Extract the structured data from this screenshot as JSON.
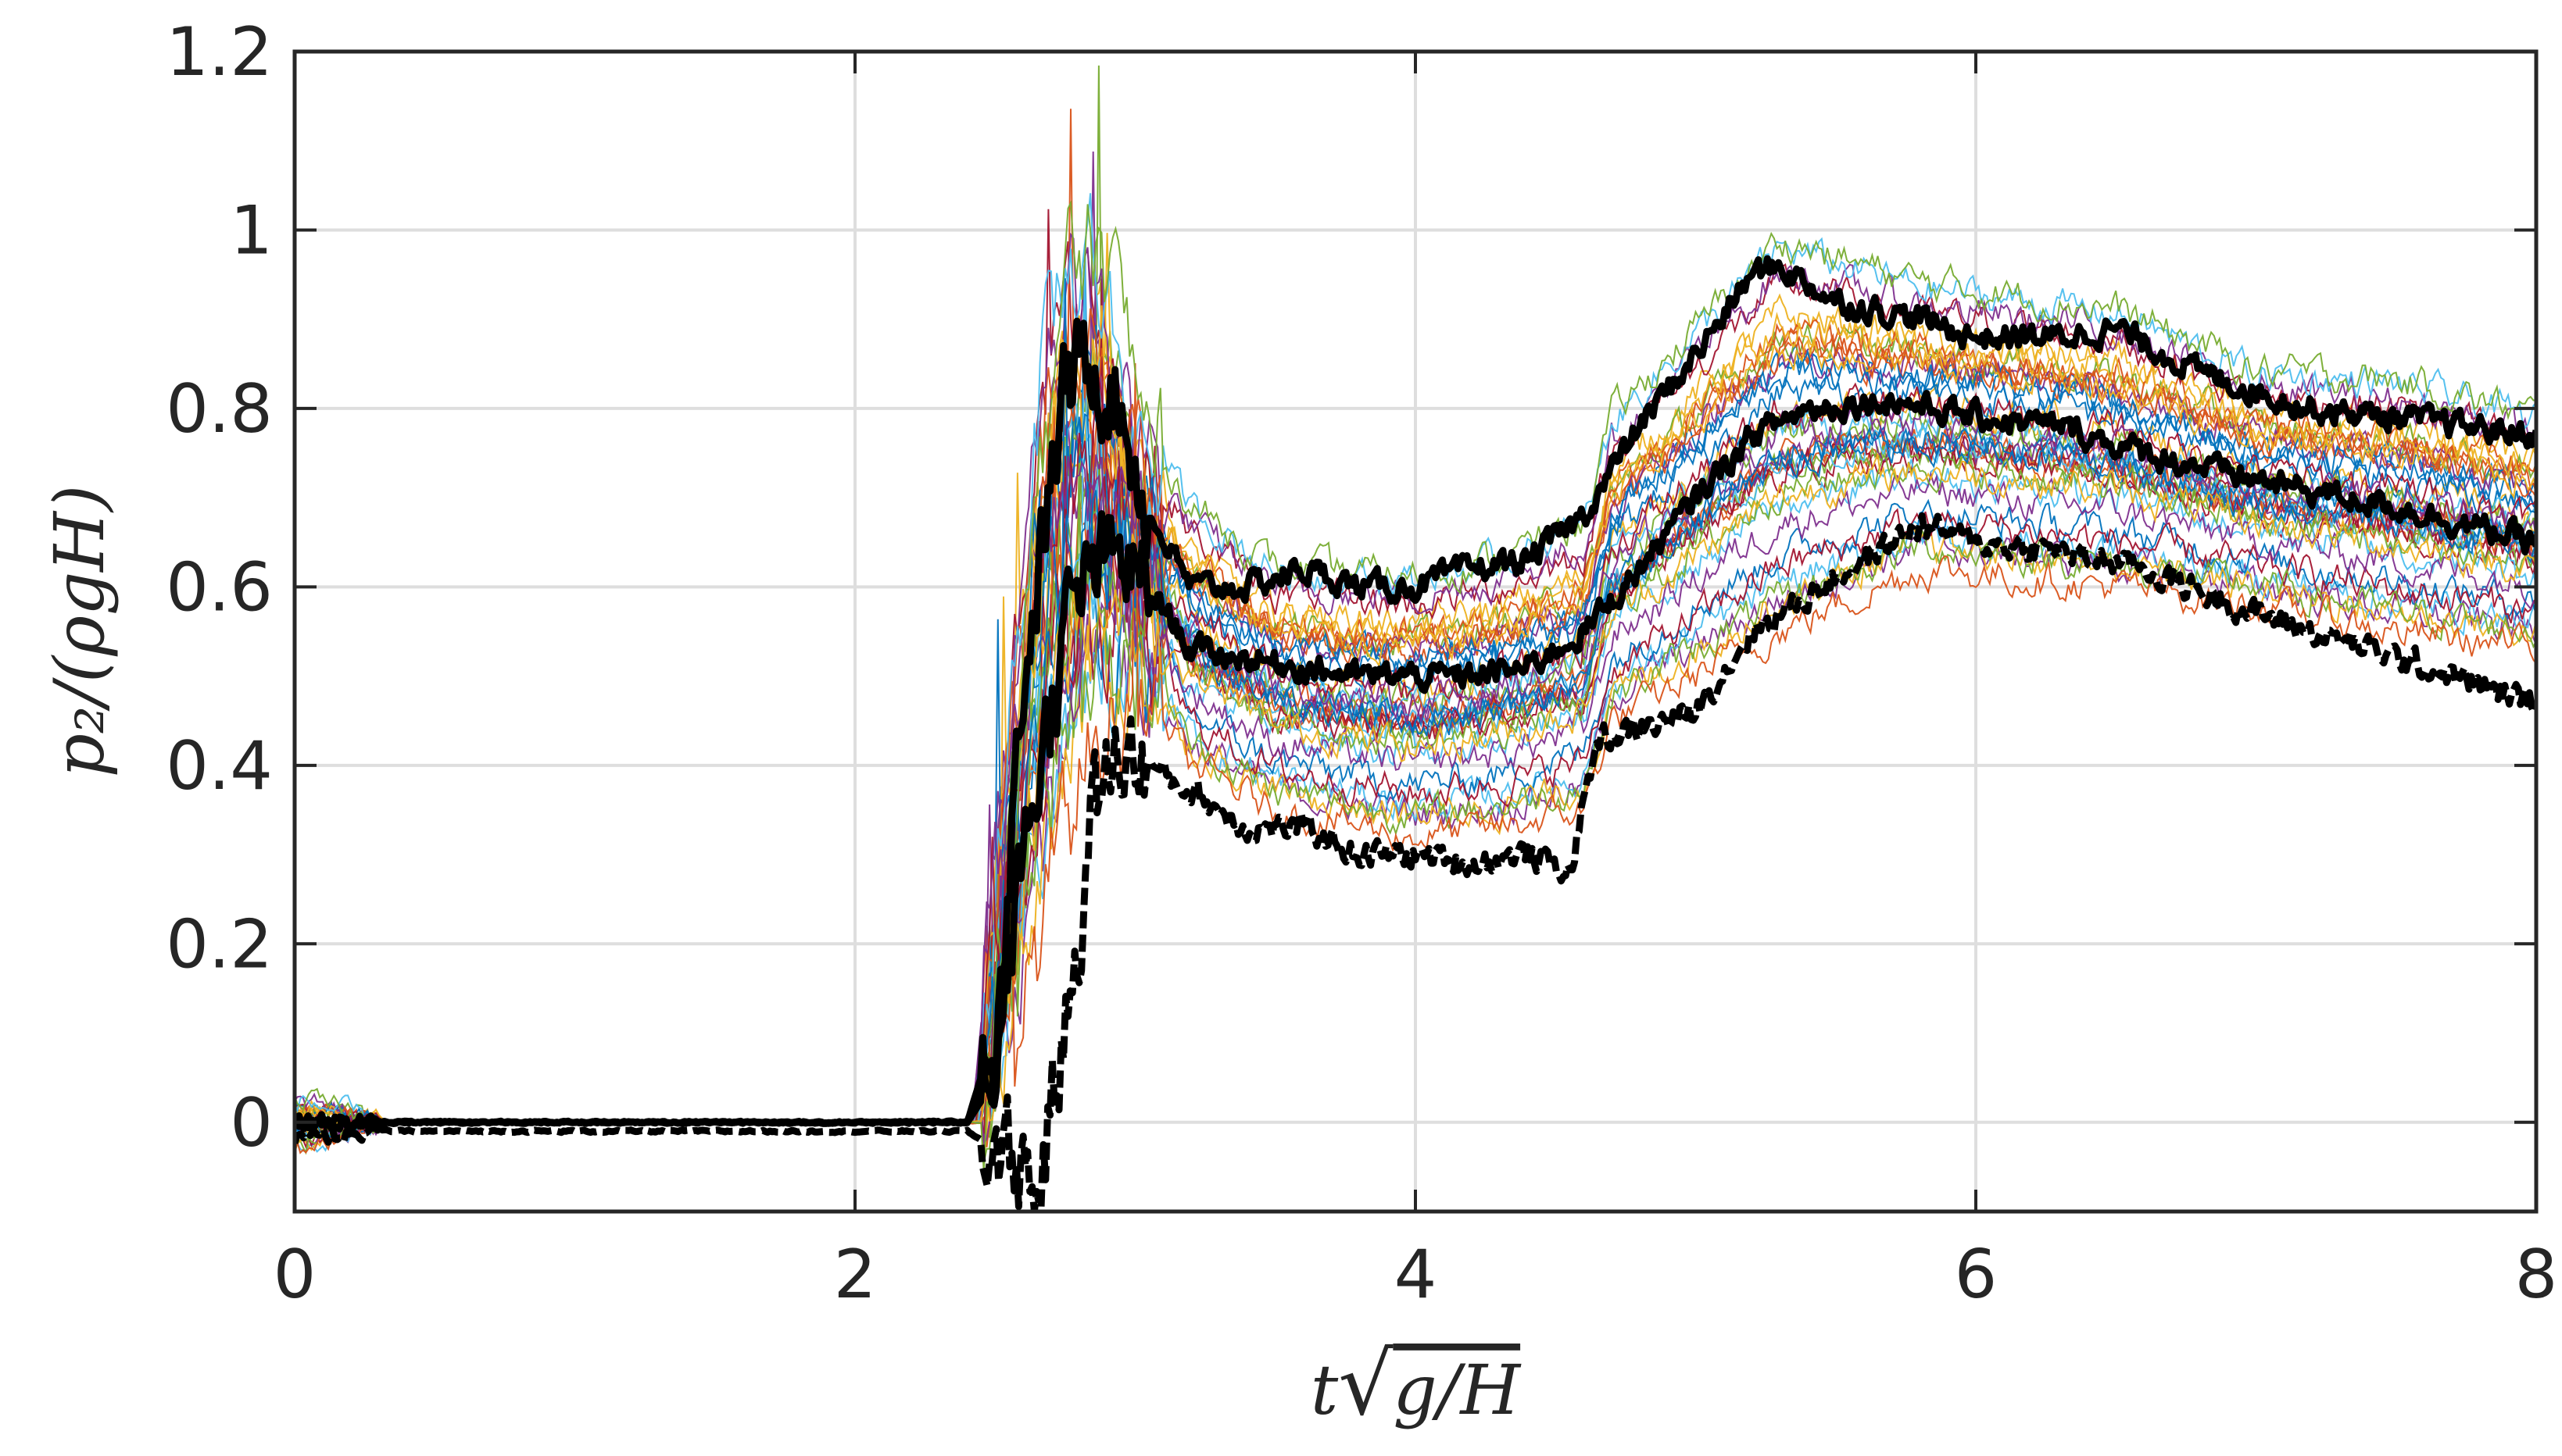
{
  "chart_data": {
    "type": "line",
    "title": "",
    "xlabel": "t√(g/H)",
    "ylabel": "p₂/(ρgH)",
    "xlim": [
      0,
      8
    ],
    "ylim": [
      -0.1,
      1.2
    ],
    "xticks": [
      "0",
      "2",
      "4",
      "6",
      "8"
    ],
    "yticks": [
      "0",
      "0.2",
      "0.4",
      "0.6",
      "0.8",
      "1",
      "1.2"
    ],
    "grid": true,
    "legend": "none",
    "background_runs": {
      "count": 40,
      "colors": [
        "#0072BD",
        "#D95319",
        "#EDB120",
        "#7E2F8E",
        "#77AC30",
        "#4DBEEE",
        "#A2142F"
      ],
      "t": [
        0,
        0.3,
        2.45,
        2.55,
        2.7,
        2.85,
        3.0,
        3.2,
        3.5,
        4.0,
        4.3,
        4.6,
        4.7,
        5.0,
        5.3,
        5.8,
        6.5,
        7.0,
        7.5,
        8.0
      ],
      "upper": [
        0.03,
        0.0,
        0.0,
        0.45,
        0.95,
        1.0,
        0.8,
        0.7,
        0.63,
        0.62,
        0.64,
        0.68,
        0.8,
        0.9,
        1.0,
        0.95,
        0.92,
        0.85,
        0.84,
        0.8
      ],
      "lower": [
        -0.03,
        0.0,
        0.0,
        0.1,
        0.3,
        0.45,
        0.5,
        0.4,
        0.35,
        0.32,
        0.33,
        0.35,
        0.45,
        0.5,
        0.55,
        0.62,
        0.6,
        0.58,
        0.55,
        0.53
      ]
    },
    "series": [
      {
        "style": "solid",
        "t": [
          0,
          0.3,
          1.0,
          2.4,
          2.5,
          2.6,
          2.75,
          2.85,
          2.95,
          3.05,
          3.2,
          3.4,
          3.6,
          3.8,
          4.0,
          4.2,
          4.4,
          4.6,
          4.8,
          5.0,
          5.2,
          5.3,
          5.5,
          5.8,
          6.0,
          6.3,
          6.5,
          6.8,
          7.2,
          7.5,
          8.0
        ],
        "values": [
          0.0,
          0.0,
          0.0,
          0.0,
          0.1,
          0.5,
          0.82,
          0.86,
          0.8,
          0.68,
          0.6,
          0.6,
          0.62,
          0.6,
          0.6,
          0.62,
          0.63,
          0.68,
          0.78,
          0.86,
          0.95,
          0.96,
          0.92,
          0.9,
          0.88,
          0.88,
          0.89,
          0.84,
          0.8,
          0.79,
          0.77
        ]
      },
      {
        "style": "solid",
        "t": [
          0,
          0.3,
          1.0,
          2.4,
          2.5,
          2.6,
          2.75,
          2.85,
          2.95,
          3.05,
          3.2,
          3.4,
          3.6,
          3.8,
          4.0,
          4.2,
          4.4,
          4.6,
          4.8,
          5.0,
          5.2,
          5.4,
          5.7,
          6.0,
          6.3,
          6.6,
          7.0,
          7.5,
          8.0
        ],
        "values": [
          0.0,
          0.0,
          0.0,
          0.0,
          0.05,
          0.3,
          0.55,
          0.62,
          0.63,
          0.6,
          0.53,
          0.52,
          0.51,
          0.5,
          0.5,
          0.5,
          0.51,
          0.55,
          0.62,
          0.7,
          0.77,
          0.8,
          0.81,
          0.79,
          0.78,
          0.75,
          0.72,
          0.69,
          0.65
        ]
      },
      {
        "style": "dashed",
        "t": [
          0,
          0.3,
          1.0,
          2.4,
          2.5,
          2.6,
          2.65,
          2.75,
          2.85,
          2.95,
          3.05,
          3.2,
          3.4,
          3.6,
          3.8,
          4.0,
          4.2,
          4.4,
          4.55,
          4.65,
          4.8,
          5.0,
          5.2,
          5.5,
          5.8,
          6.0,
          6.3,
          6.6,
          7.0,
          7.5,
          8.0
        ],
        "values": [
          -0.02,
          -0.01,
          -0.01,
          -0.01,
          -0.03,
          -0.05,
          -0.08,
          0.1,
          0.35,
          0.42,
          0.4,
          0.37,
          0.33,
          0.33,
          0.3,
          0.3,
          0.29,
          0.3,
          0.28,
          0.43,
          0.44,
          0.46,
          0.55,
          0.61,
          0.67,
          0.65,
          0.64,
          0.62,
          0.57,
          0.52,
          0.47
        ]
      }
    ]
  }
}
